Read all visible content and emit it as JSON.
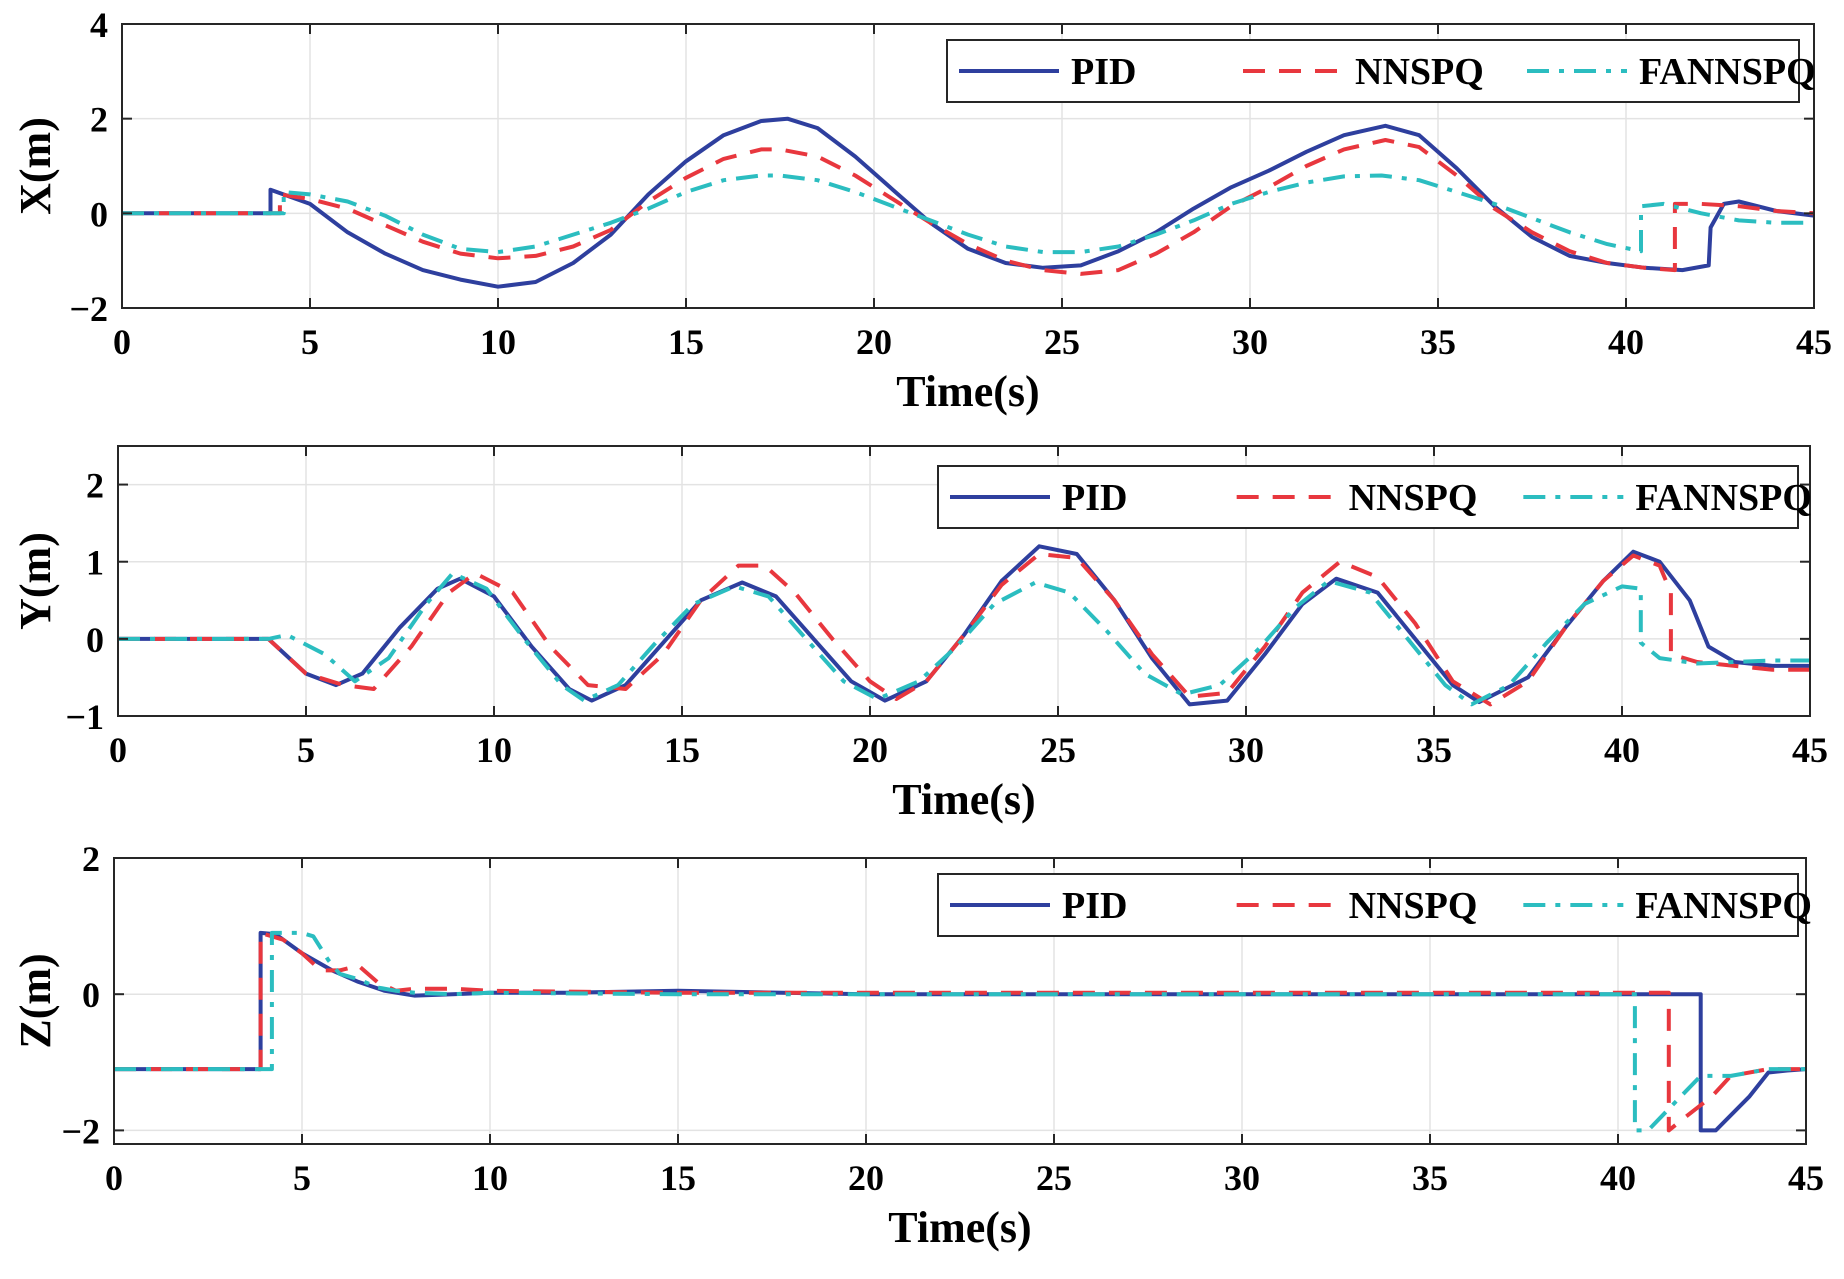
{
  "chart_data": [
    {
      "type": "line",
      "ylabel": "X(m)",
      "xlabel": "Time(s)",
      "xlim": [
        0,
        45
      ],
      "ylim": [
        -2,
        4
      ],
      "xticks": [
        0,
        5,
        10,
        15,
        20,
        25,
        30,
        35,
        40,
        45
      ],
      "yticks": [
        -2,
        0,
        2,
        4
      ],
      "ytick_labels": [
        "−2",
        "0",
        "2",
        "4"
      ],
      "grid": true,
      "legend_position": "top-right",
      "series": [
        {
          "name": "PID",
          "color": "#2E3F9E",
          "style": "solid",
          "x": [
            0,
            3.95,
            3.95,
            5,
            6,
            7,
            8,
            9,
            10,
            11,
            12,
            13,
            14,
            15,
            16,
            17,
            17.7,
            18.5,
            19.5,
            20.5,
            21.5,
            22.5,
            23.5,
            24.5,
            25.5,
            26.5,
            27.5,
            28.5,
            29.5,
            30.5,
            31.5,
            32.5,
            33.6,
            34.5,
            35.5,
            36.5,
            37.5,
            38.5,
            39.5,
            40.5,
            41.5,
            42.2,
            42.25,
            42.6,
            43,
            44,
            45
          ],
          "y": [
            0,
            0,
            0.5,
            0.2,
            -0.4,
            -0.85,
            -1.2,
            -1.4,
            -1.55,
            -1.45,
            -1.05,
            -0.45,
            0.4,
            1.1,
            1.65,
            1.95,
            2.0,
            1.8,
            1.2,
            0.5,
            -0.2,
            -0.75,
            -1.05,
            -1.15,
            -1.1,
            -0.8,
            -0.4,
            0.1,
            0.55,
            0.9,
            1.3,
            1.65,
            1.85,
            1.65,
            0.95,
            0.15,
            -0.5,
            -0.9,
            -1.05,
            -1.15,
            -1.2,
            -1.1,
            -0.3,
            0.2,
            0.25,
            0.05,
            -0.05
          ]
        },
        {
          "name": "NNSPQ",
          "color": "#E8373E",
          "style": "dashed",
          "x": [
            0,
            4.2,
            4.2,
            5,
            6,
            7,
            8,
            9,
            10,
            11,
            12,
            13,
            14,
            15,
            16,
            17,
            17.5,
            18.5,
            19.5,
            20.5,
            21.5,
            22.5,
            23.5,
            24.5,
            25.5,
            26.5,
            27.5,
            28.5,
            29.5,
            30.5,
            31.5,
            32.5,
            33.6,
            34.5,
            35.5,
            36.5,
            37.5,
            38.5,
            39.5,
            40.5,
            41.3,
            41.3,
            42,
            43,
            44,
            45
          ],
          "y": [
            0,
            0,
            0.4,
            0.3,
            0.1,
            -0.25,
            -0.6,
            -0.85,
            -0.95,
            -0.9,
            -0.7,
            -0.35,
            0.25,
            0.75,
            1.15,
            1.35,
            1.35,
            1.2,
            0.8,
            0.3,
            -0.2,
            -0.65,
            -1.0,
            -1.2,
            -1.28,
            -1.2,
            -0.85,
            -0.4,
            0.15,
            0.55,
            1.0,
            1.35,
            1.55,
            1.4,
            0.8,
            0.1,
            -0.4,
            -0.8,
            -1.05,
            -1.15,
            -1.2,
            0.2,
            0.2,
            0.15,
            0.05,
            0.0
          ]
        },
        {
          "name": "FANNSPQ",
          "color": "#2BBDC0",
          "style": "dashdot",
          "x": [
            0,
            4.3,
            4.3,
            5,
            6,
            7,
            8,
            9,
            10,
            11,
            12,
            13,
            14,
            15,
            16,
            17,
            17.5,
            18.5,
            19.5,
            20.5,
            21.5,
            22.5,
            23.5,
            24.5,
            25.5,
            26.5,
            27.5,
            28.5,
            29.5,
            30.5,
            31.5,
            32.5,
            33.5,
            34.5,
            35.5,
            36.5,
            37.5,
            38.5,
            39.5,
            40.4,
            40.4,
            41,
            42,
            43,
            44,
            45
          ],
          "y": [
            0,
            0,
            0.45,
            0.4,
            0.25,
            -0.05,
            -0.45,
            -0.75,
            -0.82,
            -0.7,
            -0.45,
            -0.2,
            0.1,
            0.45,
            0.7,
            0.8,
            0.8,
            0.7,
            0.45,
            0.15,
            -0.15,
            -0.45,
            -0.7,
            -0.82,
            -0.82,
            -0.7,
            -0.45,
            -0.15,
            0.2,
            0.45,
            0.65,
            0.78,
            0.8,
            0.7,
            0.45,
            0.2,
            -0.1,
            -0.4,
            -0.65,
            -0.8,
            0.15,
            0.2,
            0.0,
            -0.15,
            -0.2,
            -0.2
          ]
        }
      ]
    },
    {
      "type": "line",
      "ylabel": "Y(m)",
      "xlabel": "Time(s)",
      "xlim": [
        0,
        45
      ],
      "ylim": [
        -1,
        2.5
      ],
      "xticks": [
        0,
        5,
        10,
        15,
        20,
        25,
        30,
        35,
        40,
        45
      ],
      "yticks": [
        -1,
        0,
        1,
        2
      ],
      "ytick_labels": [
        "−1",
        "0",
        "1",
        "2"
      ],
      "grid": true,
      "legend_position": "top-right",
      "series": [
        {
          "name": "PID",
          "color": "#2E3F9E",
          "style": "solid",
          "x": [
            0,
            4.0,
            5.0,
            5.8,
            6.5,
            7.5,
            8.5,
            9.1,
            10.0,
            11.0,
            12.0,
            12.6,
            13.5,
            14.5,
            15.5,
            16.6,
            17.5,
            18.5,
            19.5,
            20.4,
            21.5,
            22.5,
            23.5,
            24.5,
            25.5,
            26.5,
            27.5,
            28.5,
            29.5,
            30.5,
            31.5,
            32.4,
            33.5,
            34.5,
            35.5,
            36.2,
            37.5,
            38.5,
            39.5,
            40.3,
            41.0,
            41.8,
            42.3,
            43.0,
            44.0,
            45.0
          ],
          "y": [
            0,
            0,
            -0.45,
            -0.6,
            -0.45,
            0.15,
            0.65,
            0.78,
            0.55,
            -0.1,
            -0.65,
            -0.8,
            -0.6,
            -0.05,
            0.5,
            0.73,
            0.55,
            0.0,
            -0.55,
            -0.8,
            -0.55,
            0.05,
            0.75,
            1.2,
            1.1,
            0.5,
            -0.25,
            -0.85,
            -0.8,
            -0.2,
            0.45,
            0.78,
            0.6,
            0.0,
            -0.6,
            -0.82,
            -0.5,
            0.15,
            0.75,
            1.13,
            1.0,
            0.5,
            -0.1,
            -0.3,
            -0.35,
            -0.35
          ]
        },
        {
          "name": "NNSPQ",
          "color": "#E8373E",
          "style": "dashed",
          "x": [
            0,
            4.0,
            5.0,
            6.0,
            6.8,
            7.8,
            8.8,
            9.5,
            10.5,
            11.5,
            12.5,
            13.5,
            14.5,
            15.5,
            16.5,
            17.2,
            18.0,
            19.0,
            20.0,
            20.7,
            21.5,
            22.5,
            23.5,
            24.5,
            25.5,
            26.5,
            27.5,
            28.5,
            29.5,
            30.5,
            31.5,
            32.5,
            33.5,
            34.5,
            35.5,
            36.5,
            37.5,
            38.5,
            39.5,
            40.3,
            41.0,
            41.3,
            41.3,
            42.0,
            43.0,
            44.0,
            45.0
          ],
          "y": [
            0,
            0,
            -0.45,
            -0.6,
            -0.65,
            -0.1,
            0.6,
            0.85,
            0.6,
            -0.1,
            -0.6,
            -0.65,
            -0.2,
            0.5,
            0.95,
            0.95,
            0.6,
            0.0,
            -0.55,
            -0.78,
            -0.55,
            0.05,
            0.7,
            1.1,
            1.05,
            0.5,
            -0.2,
            -0.75,
            -0.7,
            -0.1,
            0.6,
            1.0,
            0.8,
            0.2,
            -0.55,
            -0.85,
            -0.55,
            0.15,
            0.75,
            1.08,
            0.95,
            0.6,
            -0.2,
            -0.3,
            -0.35,
            -0.4,
            -0.4
          ]
        },
        {
          "name": "FANNSPQ",
          "color": "#2BBDC0",
          "style": "dashdot",
          "x": [
            0,
            4.0,
            4.5,
            5.5,
            6.3,
            7.2,
            8.2,
            8.9,
            9.8,
            10.8,
            11.8,
            12.4,
            13.3,
            14.3,
            15.3,
            16.4,
            17.3,
            18.3,
            19.3,
            20.2,
            21.3,
            22.3,
            23.3,
            24.4,
            25.3,
            26.3,
            27.3,
            28.3,
            29.3,
            30.3,
            31.3,
            32.2,
            33.3,
            34.3,
            35.3,
            36.0,
            37.0,
            38.0,
            39.0,
            40.0,
            40.5,
            40.5,
            41.0,
            42.0,
            43.0,
            44.0,
            45.0
          ],
          "y": [
            0,
            0,
            0.05,
            -0.2,
            -0.55,
            -0.25,
            0.45,
            0.85,
            0.65,
            0.0,
            -0.6,
            -0.8,
            -0.6,
            -0.05,
            0.45,
            0.68,
            0.55,
            0.0,
            -0.55,
            -0.78,
            -0.55,
            -0.1,
            0.45,
            0.73,
            0.6,
            0.1,
            -0.45,
            -0.72,
            -0.6,
            -0.15,
            0.4,
            0.75,
            0.6,
            0.0,
            -0.6,
            -0.85,
            -0.6,
            -0.05,
            0.45,
            0.68,
            0.65,
            -0.05,
            -0.25,
            -0.32,
            -0.3,
            -0.28,
            -0.28
          ]
        }
      ]
    },
    {
      "type": "line",
      "ylabel": "Z(m)",
      "xlabel": "Time(s)",
      "xlim": [
        0,
        45
      ],
      "ylim": [
        -2.2,
        2
      ],
      "xticks": [
        0,
        5,
        10,
        15,
        20,
        25,
        30,
        35,
        40,
        45
      ],
      "yticks": [
        -2,
        0,
        2
      ],
      "ytick_labels": [
        "−2",
        "0",
        "2"
      ],
      "grid": true,
      "legend_position": "top-right",
      "series": [
        {
          "name": "PID",
          "color": "#2E3F9E",
          "style": "solid",
          "x": [
            0,
            3.9,
            3.9,
            4.3,
            5.0,
            5.8,
            6.5,
            7.2,
            8.0,
            9.0,
            10.0,
            12.0,
            15.0,
            20.0,
            25.0,
            30.0,
            35.0,
            40.0,
            42.2,
            42.2,
            42.6,
            43.5,
            44.0,
            44.5,
            45.0
          ],
          "y": [
            -1.1,
            -1.1,
            0.9,
            0.88,
            0.6,
            0.35,
            0.18,
            0.05,
            -0.02,
            0.0,
            0.02,
            0.02,
            0.05,
            0.0,
            0.0,
            0.0,
            0.0,
            0.0,
            0.0,
            -2.0,
            -2.0,
            -1.5,
            -1.15,
            -1.12,
            -1.1
          ]
        },
        {
          "name": "NNSPQ",
          "color": "#E8373E",
          "style": "dashed",
          "x": [
            0,
            3.9,
            3.9,
            4.5,
            5.0,
            5.5,
            6.0,
            6.5,
            7.0,
            7.5,
            8.0,
            9.0,
            10.0,
            15.0,
            20.0,
            25.0,
            30.0,
            35.0,
            40.0,
            41.35,
            41.35,
            41.8,
            42.5,
            43.0,
            44.0,
            45.0
          ],
          "y": [
            -1.1,
            -1.1,
            0.9,
            0.8,
            0.6,
            0.35,
            0.35,
            0.42,
            0.18,
            0.05,
            0.08,
            0.08,
            0.05,
            0.02,
            0.02,
            0.02,
            0.02,
            0.02,
            0.02,
            0.02,
            -2.0,
            -1.8,
            -1.5,
            -1.2,
            -1.1,
            -1.1
          ]
        },
        {
          "name": "FANNSPQ",
          "color": "#2BBDC0",
          "style": "dashdot",
          "x": [
            0,
            4.2,
            4.2,
            5.0,
            5.3,
            5.7,
            6.0,
            6.5,
            7.0,
            7.5,
            8.0,
            9.0,
            10.0,
            15.0,
            20.0,
            25.0,
            30.0,
            35.0,
            40.0,
            40.45,
            40.45,
            40.8,
            41.5,
            42.2,
            43.0,
            44.0,
            45.0
          ],
          "y": [
            -1.1,
            -1.1,
            0.9,
            0.9,
            0.85,
            0.5,
            0.3,
            0.22,
            0.1,
            0.05,
            0.02,
            0.0,
            0.02,
            0.0,
            0.0,
            0.0,
            0.0,
            0.0,
            0.0,
            0.0,
            -2.0,
            -2.0,
            -1.6,
            -1.2,
            -1.2,
            -1.1,
            -1.1
          ]
        }
      ]
    }
  ]
}
